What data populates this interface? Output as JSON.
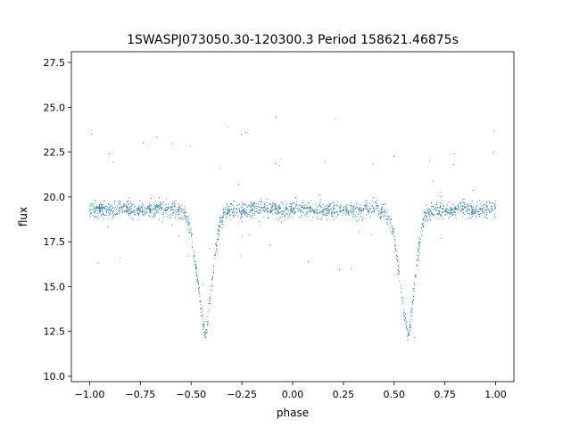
{
  "chart_data": {
    "type": "scatter",
    "title": "1SWASPJ073050.30-120300.3 Period 158621.46875s",
    "xlabel": "phase",
    "ylabel": "flux",
    "xlim": [
      -1.09,
      1.09
    ],
    "ylim": [
      9.7,
      28.1
    ],
    "xticks": [
      -1.0,
      -0.75,
      -0.5,
      -0.25,
      0.0,
      0.25,
      0.5,
      0.75,
      1.0
    ],
    "xtick_labels": [
      "−1.00",
      "−0.75",
      "−0.50",
      "−0.25",
      "0.00",
      "0.25",
      "0.50",
      "0.75",
      "1.00"
    ],
    "yticks": [
      10.0,
      12.5,
      15.0,
      17.5,
      20.0,
      22.5,
      25.0,
      27.5
    ],
    "ytick_labels": [
      "10.0",
      "12.5",
      "15.0",
      "17.5",
      "20.0",
      "22.5",
      "25.0",
      "27.5"
    ],
    "grid": false,
    "legend": "none",
    "point_color": "#1f77b4",
    "series": [
      {
        "x": [
          -1.0,
          -0.95,
          -0.9,
          -0.85,
          -0.8,
          -0.75,
          -0.7,
          -0.65,
          -0.6,
          -0.55,
          -0.52,
          -0.5,
          -0.48,
          -0.46,
          -0.44,
          -0.43,
          -0.42,
          -0.4,
          -0.38,
          -0.36,
          -0.34,
          -0.3,
          -0.25,
          -0.2,
          -0.15,
          -0.1,
          -0.05,
          0.0,
          0.05,
          0.1,
          0.15,
          0.2,
          0.25,
          0.3,
          0.35,
          0.4,
          0.45,
          0.48,
          0.5,
          0.52,
          0.54,
          0.56,
          0.57,
          0.58,
          0.6,
          0.62,
          0.64,
          0.66,
          0.7,
          0.75,
          0.8,
          0.85,
          0.9,
          0.95,
          1.0
        ],
        "y": [
          19.3,
          19.3,
          19.2,
          19.4,
          19.3,
          19.2,
          19.3,
          19.4,
          19.3,
          19.2,
          18.9,
          18.0,
          16.4,
          14.6,
          12.8,
          12.3,
          12.9,
          15.0,
          16.9,
          18.4,
          19.1,
          19.3,
          19.2,
          19.3,
          19.4,
          19.3,
          19.2,
          19.3,
          19.4,
          19.3,
          19.2,
          19.3,
          19.3,
          19.2,
          19.3,
          19.4,
          19.2,
          18.7,
          17.8,
          16.2,
          14.4,
          12.7,
          12.3,
          12.9,
          15.1,
          17.0,
          18.5,
          19.1,
          19.3,
          19.2,
          19.3,
          19.4,
          19.2,
          19.3,
          19.4
        ]
      }
    ]
  }
}
